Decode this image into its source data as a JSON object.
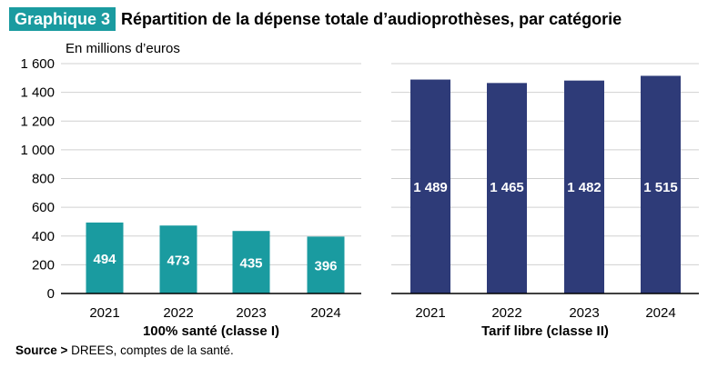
{
  "header": {
    "tag": "Graphique 3",
    "title": "Répartition de la dépense totale d’audioprothèses, par catégorie"
  },
  "unit": "En millions d’euros",
  "source": {
    "label": "Source >",
    "text": "DREES, comptes de la santé."
  },
  "colors": {
    "teal": "#1a9ba0",
    "navy": "#2e3b78",
    "grid": "#d0d0d0"
  },
  "chart_data": [
    {
      "type": "bar",
      "xlabel": "100% santé (classe I)",
      "categories": [
        "2021",
        "2022",
        "2023",
        "2024"
      ],
      "values": [
        494,
        473,
        435,
        396
      ],
      "data_labels": [
        "494",
        "473",
        "435",
        "396"
      ],
      "ylim": [
        0,
        1600
      ],
      "yticks": [
        0,
        200,
        400,
        600,
        800,
        1000,
        1200,
        1400,
        1600
      ],
      "ytick_labels": [
        "0",
        "200",
        "400",
        "600",
        "800",
        "1 000",
        "1 200",
        "1 400",
        "1 600"
      ],
      "grid": true,
      "color": "#1a9ba0"
    },
    {
      "type": "bar",
      "xlabel": "Tarif libre (classe II)",
      "categories": [
        "2021",
        "2022",
        "2023",
        "2024"
      ],
      "values": [
        1489,
        1465,
        1482,
        1515
      ],
      "data_labels": [
        "1 489",
        "1 465",
        "1 482",
        "1 515"
      ],
      "ylim": [
        0,
        1600
      ],
      "grid": true,
      "color": "#2e3b78"
    }
  ]
}
